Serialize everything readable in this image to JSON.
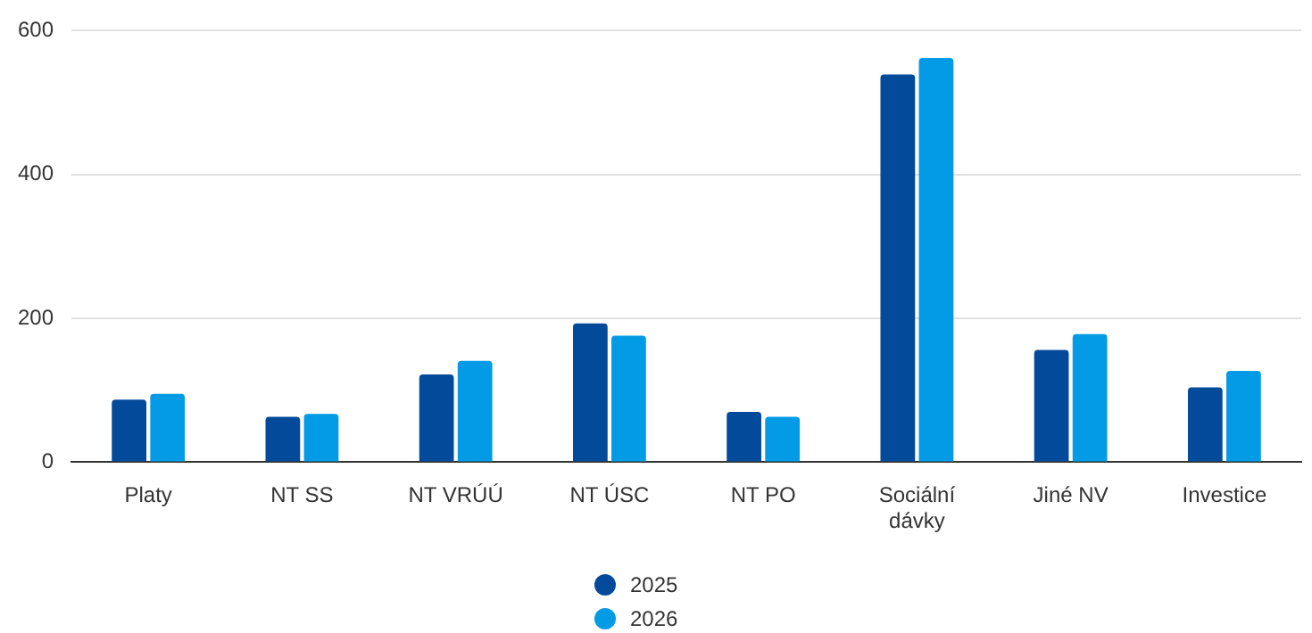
{
  "chart_data": {
    "type": "bar",
    "categories": [
      "Platy",
      "NT SS",
      "NT VRÚÚ",
      "NT ÚSC",
      "NT PO",
      "Sociální dávky",
      "Jiné NV",
      "Investice"
    ],
    "series": [
      {
        "name": "2025",
        "color": "#034a9a",
        "values": [
          87,
          63,
          122,
          193,
          70,
          539,
          156,
          104
        ]
      },
      {
        "name": "2026",
        "color": "#039be5",
        "values": [
          95,
          67,
          141,
          176,
          63,
          562,
          178,
          127
        ]
      }
    ],
    "ylim": [
      0,
      600
    ],
    "yticks": [
      0,
      200,
      400,
      600
    ],
    "grid": "y",
    "legend": "bottom"
  }
}
